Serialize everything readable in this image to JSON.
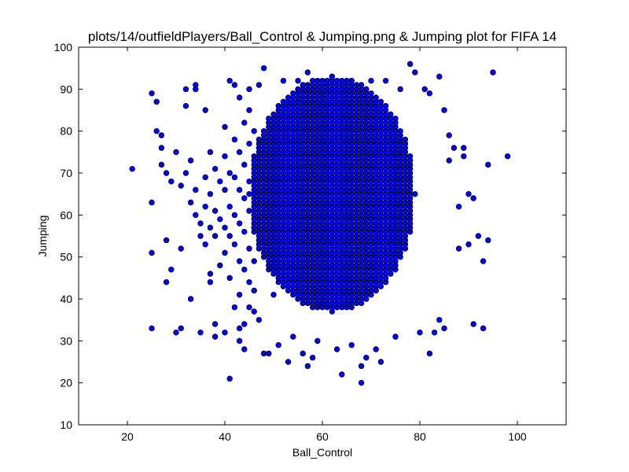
{
  "chart_data": {
    "type": "scatter",
    "title": "plots/14/outfieldPlayers/Ball_Control & Jumping.png & Jumping plot for FIFA 14",
    "xlabel": "Ball_Control",
    "ylabel": "Jumping",
    "xlim": [
      10,
      110
    ],
    "ylim": [
      10,
      100
    ],
    "xticks": [
      20,
      40,
      60,
      80,
      100
    ],
    "yticks": [
      10,
      20,
      30,
      40,
      50,
      60,
      70,
      80,
      90,
      100
    ],
    "marker_color": "#0000ff",
    "marker_edge": "#000000",
    "grid": false,
    "series": [
      {
        "points": [
          [
            21,
            71
          ],
          [
            25,
            89
          ],
          [
            25,
            63
          ],
          [
            25,
            51
          ],
          [
            25,
            33
          ],
          [
            26,
            87
          ],
          [
            26,
            80
          ],
          [
            27,
            79
          ],
          [
            27,
            76
          ],
          [
            28,
            54
          ],
          [
            28,
            44
          ],
          [
            29,
            47
          ],
          [
            30,
            32
          ],
          [
            31,
            33
          ],
          [
            31,
            52
          ],
          [
            32,
            86
          ],
          [
            32,
            90
          ],
          [
            33,
            40
          ],
          [
            34,
            91
          ],
          [
            34,
            90
          ],
          [
            35,
            32
          ],
          [
            36,
            85
          ],
          [
            37,
            44
          ],
          [
            37,
            46
          ],
          [
            38,
            34
          ],
          [
            38,
            31
          ],
          [
            40,
            32
          ],
          [
            40,
            81
          ],
          [
            41,
            21
          ],
          [
            41,
            92
          ],
          [
            42,
            91
          ],
          [
            43,
            33
          ],
          [
            43,
            30
          ],
          [
            43,
            88
          ],
          [
            44,
            28
          ],
          [
            45,
            90
          ],
          [
            46,
            37
          ],
          [
            47,
            91
          ],
          [
            47,
            35
          ],
          [
            48,
            27
          ],
          [
            48,
            95
          ],
          [
            49,
            27
          ],
          [
            50,
            41
          ],
          [
            51,
            29
          ],
          [
            52,
            92
          ],
          [
            53,
            25
          ],
          [
            54,
            31
          ],
          [
            55,
            92
          ],
          [
            56,
            27
          ],
          [
            57,
            24
          ],
          [
            57,
            94
          ],
          [
            58,
            26
          ],
          [
            59,
            30
          ],
          [
            60,
            88
          ],
          [
            61,
            92
          ],
          [
            62,
            93
          ],
          [
            63,
            28
          ],
          [
            64,
            22
          ],
          [
            64,
            91
          ],
          [
            66,
            29
          ],
          [
            66,
            92
          ],
          [
            68,
            20
          ],
          [
            68,
            24
          ],
          [
            69,
            26
          ],
          [
            70,
            92
          ],
          [
            71,
            28
          ],
          [
            72,
            25
          ],
          [
            73,
            92
          ],
          [
            75,
            31
          ],
          [
            76,
            90
          ],
          [
            78,
            96
          ],
          [
            79,
            94
          ],
          [
            80,
            32
          ],
          [
            81,
            90
          ],
          [
            82,
            27
          ],
          [
            82,
            89
          ],
          [
            83,
            32
          ],
          [
            84,
            93
          ],
          [
            84,
            35
          ],
          [
            85,
            33
          ],
          [
            85,
            85
          ],
          [
            86,
            79
          ],
          [
            86,
            73
          ],
          [
            87,
            76
          ],
          [
            88,
            52
          ],
          [
            88,
            62
          ],
          [
            89,
            74
          ],
          [
            89,
            76
          ],
          [
            90,
            65
          ],
          [
            90,
            53
          ],
          [
            91,
            34
          ],
          [
            91,
            64
          ],
          [
            92,
            55
          ],
          [
            93,
            33
          ],
          [
            93,
            49
          ],
          [
            94,
            54
          ],
          [
            94,
            72
          ],
          [
            95,
            94
          ],
          [
            98,
            74
          ],
          [
            27,
            72
          ],
          [
            28,
            70
          ],
          [
            29,
            68
          ],
          [
            30,
            75
          ],
          [
            31,
            67
          ],
          [
            32,
            70
          ],
          [
            33,
            63
          ],
          [
            33,
            73
          ],
          [
            34,
            66
          ],
          [
            34,
            60
          ],
          [
            35,
            58
          ],
          [
            35,
            55
          ],
          [
            36,
            69
          ],
          [
            36,
            62
          ],
          [
            36,
            53
          ],
          [
            37,
            75
          ],
          [
            37,
            65
          ],
          [
            37,
            57
          ],
          [
            38,
            71
          ],
          [
            38,
            61
          ],
          [
            38,
            55
          ],
          [
            39,
            68
          ],
          [
            39,
            59
          ],
          [
            39,
            48
          ],
          [
            40,
            74
          ],
          [
            40,
            66
          ],
          [
            40,
            57
          ],
          [
            40,
            51
          ],
          [
            41,
            70
          ],
          [
            41,
            62
          ],
          [
            41,
            55
          ],
          [
            41,
            45
          ],
          [
            42,
            78
          ],
          [
            42,
            69
          ],
          [
            42,
            60
          ],
          [
            42,
            53
          ],
          [
            42,
            38
          ],
          [
            43,
            75
          ],
          [
            43,
            66
          ],
          [
            43,
            58
          ],
          [
            43,
            49
          ],
          [
            43,
            41
          ],
          [
            44,
            82
          ],
          [
            44,
            72
          ],
          [
            44,
            64
          ],
          [
            44,
            56
          ],
          [
            44,
            47
          ],
          [
            44,
            34
          ],
          [
            45,
            85
          ],
          [
            45,
            77
          ],
          [
            45,
            68
          ],
          [
            45,
            61
          ],
          [
            45,
            52
          ],
          [
            45,
            44
          ],
          [
            45,
            38
          ],
          [
            46,
            80
          ],
          [
            46,
            73
          ],
          [
            46,
            65
          ],
          [
            46,
            57
          ],
          [
            46,
            49
          ],
          [
            46,
            42
          ]
        ]
      }
    ]
  }
}
